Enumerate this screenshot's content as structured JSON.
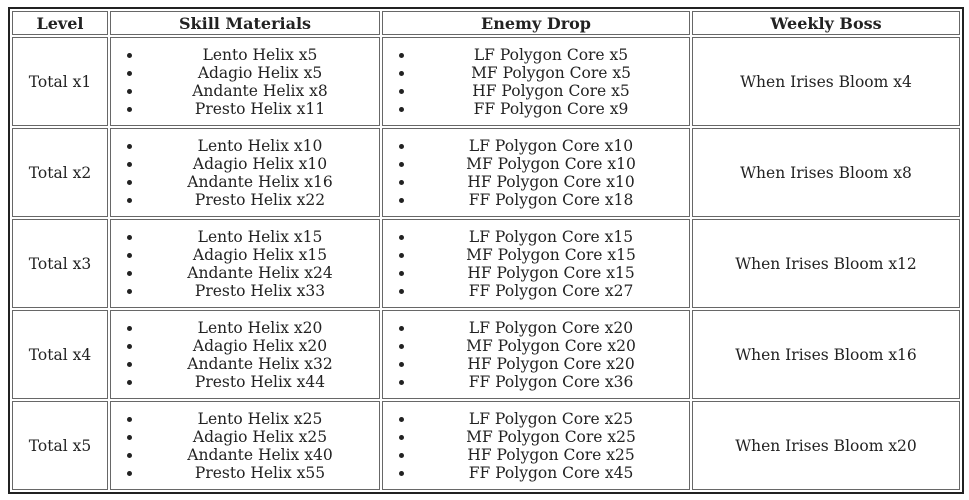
{
  "page": {
    "background_color": "#ffffff",
    "text_color": "#222222",
    "outer_border_color": "#212121",
    "cell_border_color": "#676767"
  },
  "table": {
    "headers": [
      "Level",
      "Skill Materials",
      "Enemy Drop",
      "Weekly Boss"
    ],
    "rows": [
      {
        "level": "Total x1",
        "skill_materials": [
          "Lento Helix x5",
          "Adagio Helix x5",
          "Andante Helix x8",
          "Presto Helix x11"
        ],
        "enemy_drop": [
          "LF Polygon Core x5",
          "MF Polygon Core x5",
          "HF Polygon Core x5",
          "FF Polygon Core x9"
        ],
        "weekly_boss": "When Irises Bloom x4"
      },
      {
        "level": "Total x2",
        "skill_materials": [
          "Lento Helix x10",
          "Adagio Helix x10",
          "Andante Helix x16",
          "Presto Helix x22"
        ],
        "enemy_drop": [
          "LF Polygon Core x10",
          "MF Polygon Core x10",
          "HF Polygon Core x10",
          "FF Polygon Core x18"
        ],
        "weekly_boss": "When Irises Bloom x8"
      },
      {
        "level": "Total x3",
        "skill_materials": [
          "Lento Helix x15",
          "Adagio Helix x15",
          "Andante Helix x24",
          "Presto Helix x33"
        ],
        "enemy_drop": [
          "LF Polygon Core x15",
          "MF Polygon Core x15",
          "HF Polygon Core x15",
          "FF Polygon Core x27"
        ],
        "weekly_boss": "When Irises Bloom x12"
      },
      {
        "level": "Total x4",
        "skill_materials": [
          "Lento Helix x20",
          "Adagio Helix x20",
          "Andante Helix x32",
          "Presto Helix x44"
        ],
        "enemy_drop": [
          "LF Polygon Core x20",
          "MF Polygon Core x20",
          "HF Polygon Core x20",
          "FF Polygon Core x36"
        ],
        "weekly_boss": "When Irises Bloom x16"
      },
      {
        "level": "Total x5",
        "skill_materials": [
          "Lento Helix x25",
          "Adagio Helix x25",
          "Andante Helix x40",
          "Presto Helix x55"
        ],
        "enemy_drop": [
          "LF Polygon Core x25",
          "MF Polygon Core x25",
          "HF Polygon Core x25",
          "FF Polygon Core x45"
        ],
        "weekly_boss": "When Irises Bloom x20"
      }
    ]
  }
}
